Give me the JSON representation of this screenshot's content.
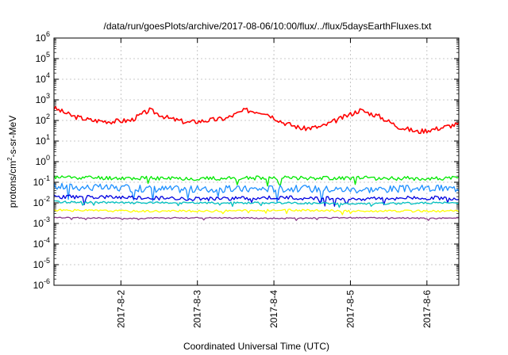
{
  "chart_data": {
    "type": "line",
    "title": "/data/run/goesPlots/archive/2017-08-06/10:00/flux/../flux/5daysEarthFluxes.txt",
    "xlabel": "Coordinated Universal Time (UTC)",
    "ylabel_parts": {
      "base": "protons/cm",
      "sup": "2",
      "rest": "-s-sr-MeV"
    },
    "y_scale": "log",
    "ylim_exp": [
      -6,
      6
    ],
    "y_tick_exponents": [
      6,
      5,
      4,
      3,
      2,
      1,
      0,
      -1,
      -2,
      -3,
      -4,
      -5,
      -6
    ],
    "x_range_days": [
      "2017-08-01 03:00",
      "2017-08-06 10:00"
    ],
    "x_ticks": [
      "2017-8-2",
      "2017-8-3",
      "2017-8-4",
      "2017-8-5",
      "2017-8-6"
    ],
    "grid": true,
    "legend": "none",
    "series": [
      {
        "color": "#ff0000",
        "x_hours": [
          0,
          6,
          12,
          18,
          24,
          30,
          36,
          42,
          48,
          54,
          60,
          66,
          72,
          78,
          84,
          90,
          96,
          102,
          108,
          114,
          120,
          126
        ],
        "log10_y": [
          2.6,
          2.2,
          2.0,
          1.95,
          2.0,
          2.5,
          2.1,
          1.9,
          2.0,
          2.1,
          2.5,
          2.4,
          1.9,
          1.6,
          1.7,
          2.1,
          2.5,
          2.2,
          1.7,
          1.45,
          1.6,
          1.8
        ],
        "noise": 0.12,
        "seed": 3
      },
      {
        "color": "#00e800",
        "x_hours": [
          0,
          24,
          48,
          72,
          96,
          120,
          127
        ],
        "log10_y": [
          -0.75,
          -0.8,
          -0.82,
          -0.78,
          -0.8,
          -0.82,
          -0.8
        ],
        "noise": 0.1,
        "seed": 11
      },
      {
        "color": "#1e90ff",
        "x_hours": [
          0,
          24,
          48,
          72,
          96,
          120,
          127
        ],
        "log10_y": [
          -1.2,
          -1.3,
          -1.35,
          -1.3,
          -1.35,
          -1.3,
          -1.3
        ],
        "noise": 0.18,
        "seed": 17
      },
      {
        "color": "#0000e0",
        "x_hours": [
          0,
          24,
          48,
          72,
          96,
          120,
          127
        ],
        "log10_y": [
          -1.7,
          -1.75,
          -1.8,
          -1.75,
          -1.8,
          -1.75,
          -1.8
        ],
        "noise": 0.1,
        "seed": 23
      },
      {
        "color": "#00c0c0",
        "x_hours": [
          0,
          24,
          48,
          72,
          96,
          120,
          127
        ],
        "log10_y": [
          -1.95,
          -2.0,
          -2.0,
          -2.0,
          -2.05,
          -2.0,
          -2.0
        ],
        "noise": 0.05,
        "seed": 29
      },
      {
        "color": "#ffff00",
        "x_hours": [
          0,
          24,
          48,
          72,
          96,
          120,
          127
        ],
        "log10_y": [
          -2.35,
          -2.4,
          -2.4,
          -2.35,
          -2.4,
          -2.4,
          -2.4
        ],
        "noise": 0.05,
        "seed": 31
      },
      {
        "color": "#8b3a8b",
        "x_hours": [
          0,
          24,
          48,
          72,
          96,
          120,
          127
        ],
        "log10_y": [
          -2.72,
          -2.75,
          -2.72,
          -2.75,
          -2.72,
          -2.75,
          -2.72
        ],
        "noise": 0.03,
        "seed": 37
      }
    ]
  }
}
